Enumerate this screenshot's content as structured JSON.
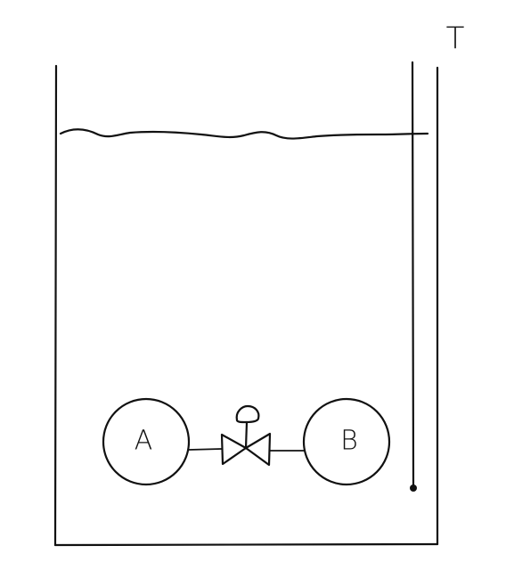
{
  "thermometer_label": "T",
  "vessel_a": {
    "label": "A"
  },
  "vessel_b": {
    "label": "B"
  },
  "colors": {
    "ink": "#111111",
    "background": "#ffffff"
  },
  "icons": [
    "valve-icon",
    "thermometer-icon"
  ]
}
